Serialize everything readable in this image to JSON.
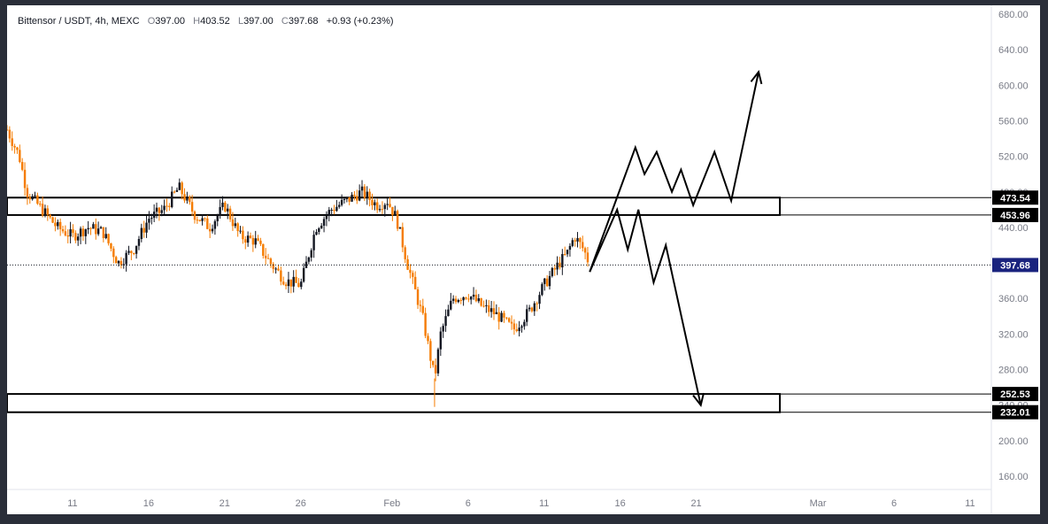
{
  "legend": {
    "symbol": "Bittensor / USDT, 4h, MEXC",
    "o_label": "O",
    "o": "397.00",
    "h_label": "H",
    "h": "403.52",
    "l_label": "L",
    "l": "397.00",
    "c_label": "C",
    "c": "397.68",
    "change": "+0.93 (+0.23%)"
  },
  "colors": {
    "up": "#131722",
    "down": "#f57c00",
    "drawing": "#000000",
    "last_price_badge": "#1a237e",
    "level_badge": "#000000",
    "axis_text": "#787b86"
  },
  "chart_data": {
    "type": "candlestick",
    "ylim": [
      150,
      690
    ],
    "y_ticks": [
      "680.00",
      "640.00",
      "600.00",
      "560.00",
      "520.00",
      "480.00",
      "440.00",
      "400.00",
      "360.00",
      "320.00",
      "280.00",
      "240.00",
      "200.00",
      "160.00"
    ],
    "y_tick_values": [
      680,
      640,
      600,
      560,
      520,
      480,
      440,
      400,
      360,
      320,
      280,
      240,
      200,
      160
    ],
    "x_ticks": [
      "11",
      "16",
      "21",
      "26",
      "Feb",
      "6",
      "11",
      "16",
      "21",
      "Mar",
      "6",
      "11"
    ],
    "x_tick_days": [
      11,
      16,
      21,
      26,
      32,
      37,
      42,
      47,
      52,
      60,
      65,
      70
    ],
    "xlim_days": [
      6.7,
      71.4
    ],
    "price_levels": [
      {
        "label": "473.54",
        "value": 473.54
      },
      {
        "label": "453.96",
        "value": 453.96
      },
      {
        "label": "252.53",
        "value": 252.53
      },
      {
        "label": "232.01",
        "value": 232.01
      }
    ],
    "last_price": {
      "label": "397.68",
      "value": 397.68
    },
    "zones": [
      {
        "from_day": 6.7,
        "to_day": 57.5,
        "low": 453.96,
        "high": 473.54
      },
      {
        "from_day": 6.7,
        "to_day": 57.5,
        "low": 232.01,
        "high": 252.53
      }
    ],
    "price_path_day": [
      [
        6.7,
        550
      ],
      [
        7.5,
        520
      ],
      [
        8,
        480
      ],
      [
        9,
        460
      ],
      [
        10,
        440
      ],
      [
        11,
        430
      ],
      [
        12,
        440
      ],
      [
        13,
        435
      ],
      [
        14,
        400
      ],
      [
        15,
        415
      ],
      [
        16,
        450
      ],
      [
        17,
        460
      ],
      [
        18,
        485
      ],
      [
        19,
        455
      ],
      [
        20,
        440
      ],
      [
        21,
        465
      ],
      [
        22,
        430
      ],
      [
        23,
        425
      ],
      [
        24,
        400
      ],
      [
        25,
        380
      ],
      [
        26,
        375
      ],
      [
        27,
        440
      ],
      [
        28,
        460
      ],
      [
        29,
        470
      ],
      [
        30,
        480
      ],
      [
        31,
        465
      ],
      [
        31.7,
        470
      ],
      [
        32.3,
        450
      ],
      [
        33,
        400
      ],
      [
        34,
        340
      ],
      [
        34.8,
        270
      ],
      [
        35.2,
        320
      ],
      [
        36,
        360
      ],
      [
        37,
        365
      ],
      [
        38,
        350
      ],
      [
        38.6,
        345
      ],
      [
        39,
        340
      ],
      [
        40,
        325
      ],
      [
        41,
        345
      ],
      [
        42,
        375
      ],
      [
        43,
        400
      ],
      [
        43.5,
        410
      ],
      [
        44,
        430
      ],
      [
        44.6,
        415
      ],
      [
        45,
        398
      ]
    ],
    "projection_up": [
      [
        45,
        390
      ],
      [
        46.5,
        460
      ],
      [
        48,
        530
      ],
      [
        48.6,
        500
      ],
      [
        49.4,
        525
      ],
      [
        50.4,
        480
      ],
      [
        51,
        505
      ],
      [
        51.8,
        465
      ],
      [
        53.2,
        525
      ],
      [
        54.3,
        470
      ],
      [
        56.1,
        615
      ]
    ],
    "projection_down": [
      [
        45,
        390
      ],
      [
        46.8,
        460
      ],
      [
        47.5,
        415
      ],
      [
        48.2,
        460
      ],
      [
        49.2,
        378
      ],
      [
        50,
        420
      ],
      [
        52.3,
        240
      ]
    ]
  }
}
